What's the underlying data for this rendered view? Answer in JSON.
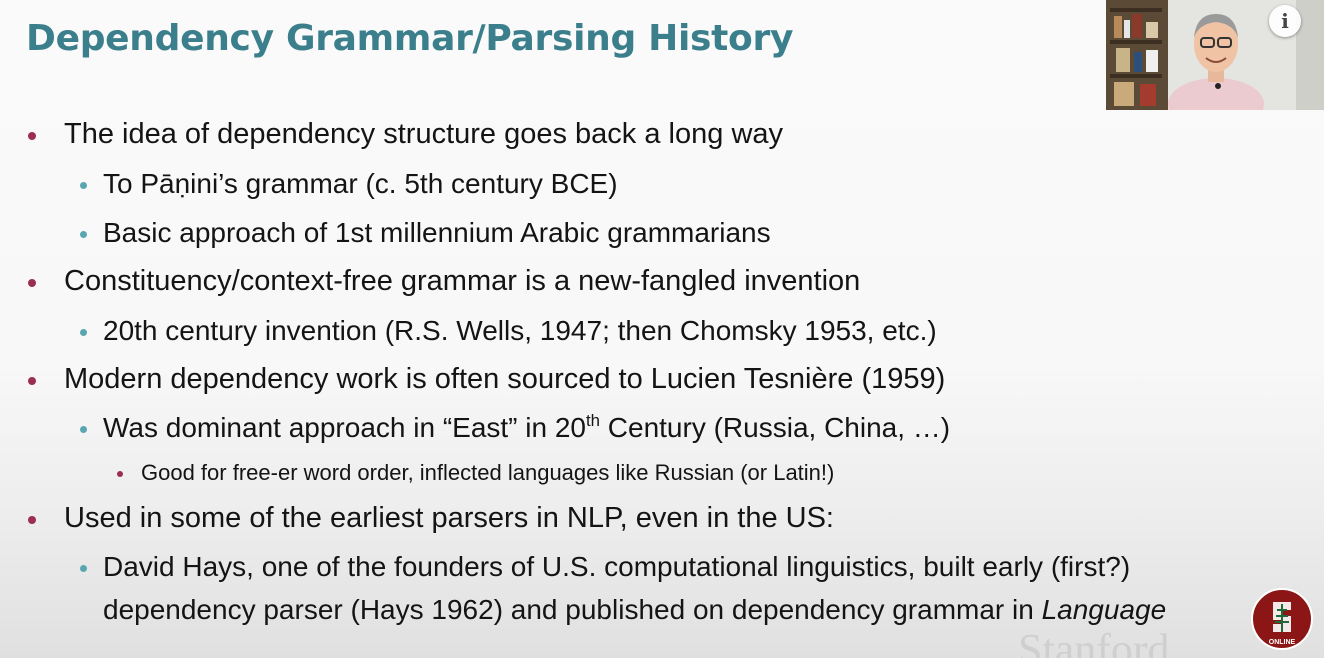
{
  "slide": {
    "title": "Dependency Grammar/Parsing History",
    "bullets": [
      "The idea of dependency structure goes back a long way",
      "To Pāṇini’s grammar (c. 5th century BCE)",
      "Basic approach of 1st millennium Arabic grammarians",
      "Constituency/context-free grammar is a new-fangled invention",
      "20th century invention (R.S. Wells, 1947; then Chomsky 1953, etc.)",
      "Modern dependency work is often sourced to Lucien Tesnière (1959)",
      {
        "before": "Was dominant approach in “East” in 20",
        "sup": "th",
        "after": " Century (Russia, China, …)"
      },
      "Good for free-er word order, inflected languages like Russian (or Latin!)",
      "Used in some of the earliest parsers in NLP, even in the US:",
      {
        "line1": "David Hays, one of the founders of U.S. computational linguistics, built early (first?)",
        "line2_plain": "dependency parser (Hays 1962) and published on dependency grammar in ",
        "line2_italic": "Language"
      }
    ]
  },
  "overlay": {
    "info_icon": "i",
    "info_icon_name": "info-icon",
    "logo_text": "ONLINE",
    "watermark_text": "Stanford",
    "logo_color": "#8c1515"
  }
}
